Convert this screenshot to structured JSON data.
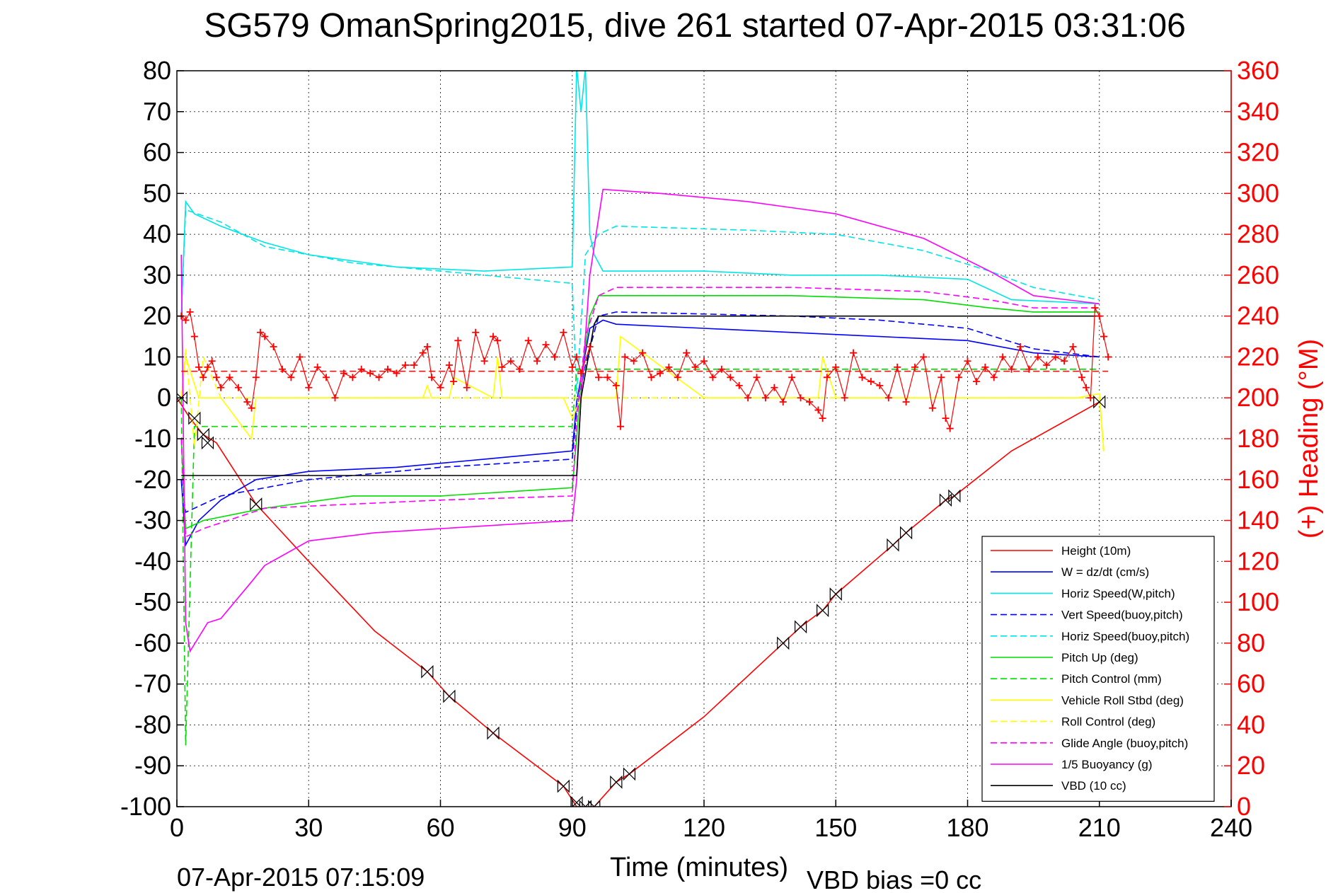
{
  "chart_data": {
    "type": "line",
    "title": "SG579 OmanSpring2015, dive 261 started 07-Apr-2015 03:31:06",
    "xlabel": "Time (minutes)",
    "ylabel": "",
    "ylabel_right": "(+) Heading (°M)",
    "footer_timestamp": "07-Apr-2015 07:15:09",
    "footer_vbd": "VBD bias =0 cc",
    "xlim": [
      0,
      240
    ],
    "ylim": [
      -100,
      80
    ],
    "ylim_right": [
      0,
      360
    ],
    "x_ticks": [
      "0",
      "30",
      "60",
      "90",
      "120",
      "150",
      "180",
      "210",
      "240"
    ],
    "y_ticks": [
      "80",
      "70",
      "60",
      "50",
      "40",
      "30",
      "20",
      "10",
      "0",
      "-10",
      "-20",
      "-30",
      "-40",
      "-50",
      "-60",
      "-70",
      "-80",
      "-90",
      "-100"
    ],
    "y_ticks_right": [
      "360",
      "340",
      "320",
      "300",
      "280",
      "260",
      "240",
      "220",
      "200",
      "180",
      "160",
      "140",
      "120",
      "100",
      "80",
      "60",
      "40",
      "20",
      "0"
    ],
    "grid": true,
    "legend_position": "bottom-right",
    "series": [
      {
        "name": "Height (10m)",
        "color": "#ff0000",
        "dash": "solid",
        "x": [
          0,
          3,
          6,
          9,
          18,
          30,
          45,
          57,
          62,
          72,
          88,
          91,
          95,
          100,
          103,
          120,
          138,
          142,
          147,
          150,
          163,
          166,
          175,
          177,
          190,
          210
        ],
        "y": [
          0,
          -5,
          -9,
          -11,
          -26,
          -40,
          -57,
          -67,
          -73,
          -82,
          -95,
          -100,
          -100,
          -94,
          -92,
          -78,
          -60,
          -56,
          -52,
          -48,
          -36,
          -33,
          -25,
          -24,
          -13,
          -1
        ]
      },
      {
        "name": "W = dz/dt (cm/s)",
        "color": "#0000ff",
        "dash": "solid",
        "x": [
          1,
          2,
          5,
          10,
          18,
          30,
          50,
          70,
          90,
          91,
          92,
          94,
          97,
          100,
          120,
          140,
          160,
          180,
          195,
          210
        ],
        "y": [
          -20,
          -36,
          -30,
          -25,
          -20,
          -18,
          -17,
          -15,
          -13,
          -1,
          5,
          17,
          19,
          18,
          17,
          16,
          15,
          14,
          11,
          10
        ]
      },
      {
        "name": "Horiz Speed(W,pitch)",
        "color": "#00e5e5",
        "dash": "solid",
        "x": [
          1,
          2,
          4,
          10,
          20,
          30,
          50,
          70,
          90,
          91,
          92,
          93,
          94,
          95,
          97,
          100,
          120,
          140,
          160,
          180,
          190,
          210
        ],
        "y": [
          20,
          48,
          45,
          42,
          38,
          35,
          32,
          31,
          32,
          81,
          70,
          81,
          40,
          35,
          31,
          31,
          31,
          30,
          30,
          29,
          24,
          23
        ]
      },
      {
        "name": "Vert Speed(buoy,pitch)",
        "color": "#0000ff",
        "dash": "dashed",
        "x": [
          1,
          2,
          10,
          30,
          60,
          90,
          91,
          93,
          96,
          100,
          140,
          160,
          180,
          195,
          210
        ],
        "y": [
          -20,
          -28,
          -24,
          -20,
          -17,
          -15,
          -3,
          8,
          20,
          21,
          20,
          19,
          17,
          12,
          10
        ]
      },
      {
        "name": "Horiz Speed(buoy,pitch)",
        "color": "#00e5e5",
        "dash": "dashed",
        "x": [
          1,
          2,
          10,
          20,
          40,
          60,
          90,
          91,
          93,
          96,
          100,
          130,
          150,
          170,
          185,
          195,
          210
        ],
        "y": [
          20,
          46,
          43,
          37,
          33,
          31,
          28,
          1,
          35,
          40,
          42,
          41,
          40,
          36,
          31,
          27,
          24
        ]
      },
      {
        "name": "Pitch Up (deg)",
        "color": "#00dd00",
        "dash": "solid",
        "x": [
          1,
          2,
          6,
          20,
          40,
          60,
          90,
          91,
          92,
          94,
          96,
          100,
          140,
          170,
          185,
          195,
          210
        ],
        "y": [
          -10,
          -32,
          -30,
          -27,
          -24,
          -24,
          -22,
          -10,
          5,
          20,
          25,
          25,
          25,
          24,
          22,
          21,
          21
        ]
      },
      {
        "name": "Pitch Control (mm)",
        "color": "#00dd00",
        "dash": "dashed",
        "x": [
          1,
          2,
          4,
          10,
          30,
          60,
          90,
          91,
          95,
          120,
          150,
          180,
          210
        ],
        "y": [
          0,
          -85,
          -7,
          -7,
          -7,
          -7,
          -7,
          7,
          7,
          7,
          7,
          7,
          7
        ]
      },
      {
        "name": "Vehicle Roll Stbd (deg)",
        "color": "#ffff00",
        "dash": "solid",
        "x": [
          1,
          2,
          5,
          10,
          17,
          18,
          20,
          40,
          56,
          57,
          58,
          62,
          63,
          72,
          73,
          74,
          88,
          90,
          92,
          100,
          101,
          120,
          140,
          146,
          147,
          150,
          160,
          180,
          205,
          210,
          211
        ],
        "y": [
          0,
          10,
          0,
          0,
          -10,
          0,
          0,
          0,
          0,
          3,
          0,
          0,
          5,
          0,
          10,
          0,
          0,
          -5,
          0,
          0,
          15,
          0,
          0,
          0,
          10,
          0,
          0,
          0,
          0,
          1,
          -13
        ]
      },
      {
        "name": "Roll Control (deg)",
        "color": "#ffff00",
        "dash": "dashed",
        "x": [
          1,
          2,
          4,
          6,
          10,
          30,
          60,
          90,
          91,
          95,
          100,
          120,
          150,
          180,
          210,
          211
        ],
        "y": [
          0,
          12,
          -12,
          10,
          0,
          0,
          0,
          0,
          0,
          0,
          0,
          0,
          0,
          0,
          0,
          -14
        ]
      },
      {
        "name": "Glide Angle (buoy,pitch)",
        "color": "#ff00ff",
        "dash": "dashed",
        "x": [
          1,
          2,
          6,
          20,
          40,
          60,
          90,
          91,
          93,
          96,
          100,
          140,
          170,
          185,
          195,
          210
        ],
        "y": [
          -10,
          -34,
          -32,
          -27,
          -26,
          -25,
          -24,
          -5,
          15,
          25,
          27,
          27,
          26,
          24,
          22,
          22
        ]
      },
      {
        "name": "1/5 Buoyancy (g)",
        "color": "#ff00ff",
        "dash": "solid",
        "x": [
          1,
          2,
          3,
          7,
          10,
          17,
          20,
          30,
          45,
          60,
          75,
          90,
          91,
          92,
          94,
          97,
          110,
          130,
          150,
          170,
          185,
          195,
          210
        ],
        "y": [
          35,
          -55,
          -62,
          -55,
          -54,
          -45,
          -41,
          -35,
          -33,
          -32,
          -31,
          -30,
          -20,
          0,
          30,
          51,
          50,
          48,
          45,
          39,
          31,
          25,
          23
        ]
      },
      {
        "name": "VBD (10 cc)",
        "color": "#000000",
        "dash": "solid",
        "x": [
          1,
          2,
          90,
          91,
          92,
          95,
          96,
          210
        ],
        "y": [
          -19,
          -19,
          -19,
          -19,
          0,
          18,
          20,
          20
        ]
      }
    ],
    "heading_series": {
      "name": "Heading",
      "color": "#ff0000",
      "marker": "+",
      "axis": "right",
      "mean": 213,
      "x": [
        1,
        2,
        3,
        4,
        5,
        6,
        7,
        8,
        9,
        10,
        12,
        14,
        16,
        17,
        18,
        19,
        20,
        22,
        24,
        26,
        28,
        30,
        32,
        34,
        36,
        38,
        40,
        42,
        44,
        46,
        48,
        50,
        52,
        54,
        56,
        57,
        58,
        60,
        62,
        63,
        64,
        66,
        68,
        70,
        72,
        73,
        74,
        76,
        78,
        80,
        82,
        84,
        86,
        88,
        90,
        91,
        92,
        94,
        96,
        98,
        100,
        101,
        102,
        104,
        106,
        108,
        110,
        112,
        114,
        116,
        118,
        120,
        122,
        124,
        126,
        128,
        130,
        132,
        134,
        136,
        138,
        140,
        142,
        144,
        146,
        147,
        148,
        150,
        152,
        154,
        156,
        158,
        160,
        162,
        164,
        166,
        168,
        170,
        172,
        174,
        175,
        176,
        178,
        180,
        182,
        184,
        186,
        188,
        190,
        192,
        194,
        196,
        198,
        200,
        202,
        204,
        206,
        207,
        208,
        209,
        210,
        211,
        212
      ],
      "y": [
        240,
        238,
        242,
        230,
        215,
        210,
        215,
        218,
        210,
        205,
        210,
        205,
        198,
        195,
        210,
        232,
        230,
        225,
        214,
        210,
        220,
        205,
        215,
        210,
        200,
        212,
        210,
        214,
        212,
        210,
        214,
        212,
        216,
        216,
        222,
        225,
        210,
        205,
        216,
        208,
        228,
        205,
        232,
        218,
        230,
        228,
        215,
        218,
        214,
        228,
        218,
        226,
        220,
        232,
        215,
        220,
        212,
        225,
        210,
        210,
        206,
        186,
        220,
        218,
        222,
        210,
        212,
        215,
        210,
        222,
        215,
        218,
        210,
        214,
        210,
        206,
        200,
        210,
        200,
        205,
        198,
        210,
        200,
        198,
        194,
        190,
        210,
        215,
        200,
        222,
        210,
        208,
        206,
        200,
        215,
        198,
        215,
        220,
        195,
        210,
        190,
        185,
        210,
        218,
        208,
        215,
        210,
        220,
        214,
        225,
        214,
        220,
        216,
        220,
        218,
        225,
        210,
        205,
        200,
        244,
        240,
        230,
        220
      ]
    },
    "markers": {
      "symbol": "bowtie",
      "x": [
        1,
        4,
        6,
        7,
        18,
        57,
        62,
        72,
        88,
        91,
        93,
        95,
        100,
        103,
        138,
        142,
        147,
        150,
        163,
        166,
        175,
        177,
        210
      ],
      "y": [
        0,
        -5,
        -9,
        -11,
        -26,
        -67,
        -73,
        -82,
        -95,
        -99,
        -100,
        -100,
        -94,
        -92,
        -60,
        -56,
        -52,
        -48,
        -36,
        -33,
        -25,
        -24,
        -1
      ]
    }
  }
}
